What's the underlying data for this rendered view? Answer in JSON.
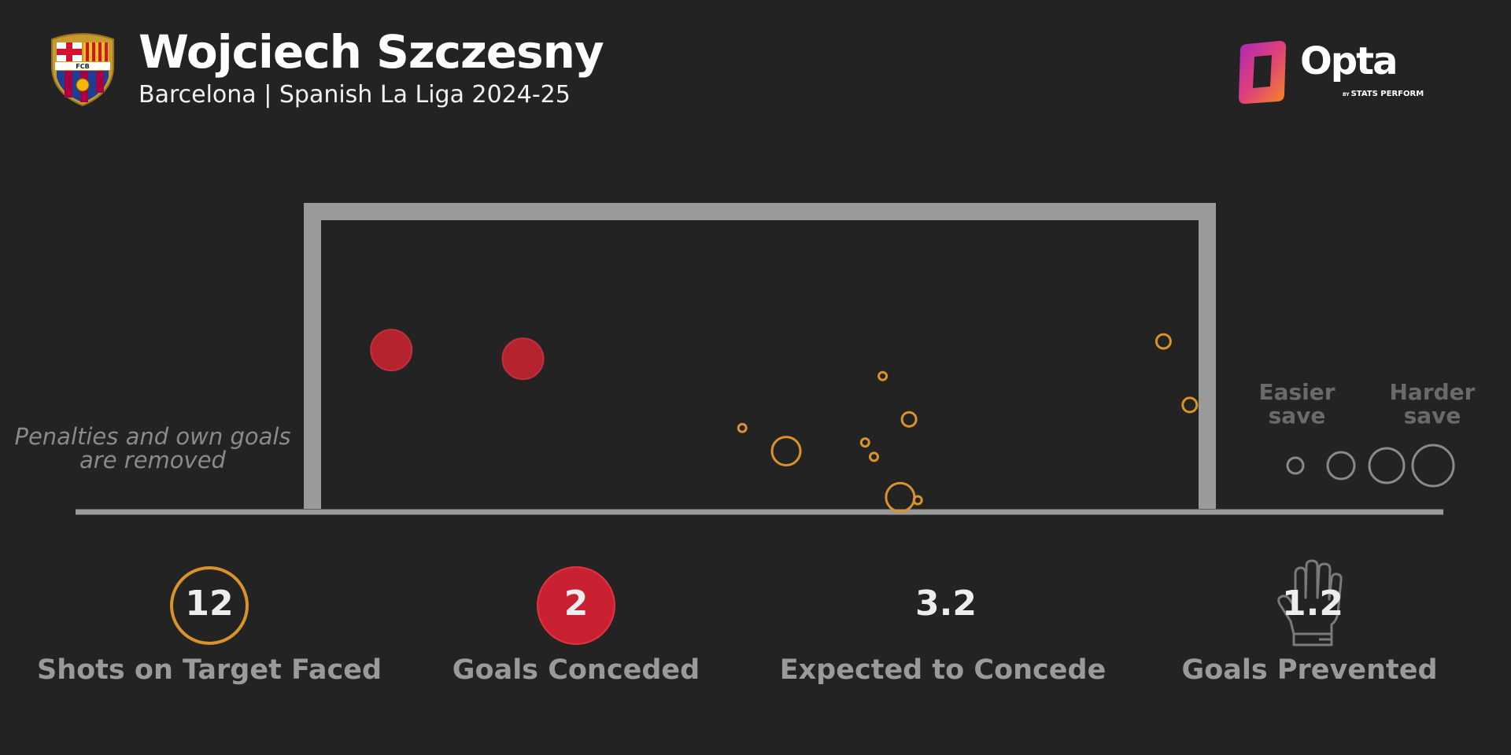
{
  "header": {
    "player_name": "Wojciech Szczesny",
    "subtitle": "Barcelona | Spanish La Liga 2024-25",
    "club_crest": "barcelona-fcb-crest",
    "crest_letters": "FCB"
  },
  "brand": {
    "logo_text": "Opta",
    "sub_prefix": "BY",
    "sub_text": "STATS PERFORM",
    "logo_colors": [
      "#b030a0",
      "#f08020"
    ]
  },
  "colors": {
    "background": "#232323",
    "goal_frame": "#9a9a9a",
    "saved_shot": "#d9932a",
    "goal_conceded": "#b5232f",
    "legend_outline": "#8a8a8a"
  },
  "note": [
    "Penalties and own goals",
    "are removed"
  ],
  "legend": {
    "easier_label": "Easier save",
    "harder_label": "Harder save",
    "size_steps": 4
  },
  "stats": [
    {
      "value": "12",
      "label": "Shots on Target Faced",
      "icon": "saved-shot-circle-icon"
    },
    {
      "value": "2",
      "label": "Goals Conceded",
      "icon": "goal-circle-icon"
    },
    {
      "value": "3.2",
      "label": "Expected to Concede",
      "icon": ""
    },
    {
      "value": "1.2",
      "label": "Goals Prevented",
      "icon": "goalkeeper-glove-icon"
    }
  ],
  "chart_data": {
    "type": "scatter",
    "description_axes": "shot placement across goal mouth; x = fraction of goal width from left post, y = fraction of goal height from ground",
    "xlim": [
      0,
      1
    ],
    "ylim": [
      0,
      1
    ],
    "series": [
      {
        "name": "",
        "outcome": "goal",
        "points": [
          {
            "x": 0.08,
            "y": 0.55,
            "size": 3
          },
          {
            "x": 0.23,
            "y": 0.52,
            "size": 3
          }
        ]
      },
      {
        "name": "",
        "outcome": "saved",
        "points": [
          {
            "x": 0.96,
            "y": 0.58,
            "size": 1
          },
          {
            "x": 0.64,
            "y": 0.46,
            "size": 0
          },
          {
            "x": 0.99,
            "y": 0.36,
            "size": 1
          },
          {
            "x": 0.67,
            "y": 0.31,
            "size": 1
          },
          {
            "x": 0.48,
            "y": 0.28,
            "size": 0
          },
          {
            "x": 0.53,
            "y": 0.2,
            "size": 2
          },
          {
            "x": 0.62,
            "y": 0.23,
            "size": 0
          },
          {
            "x": 0.63,
            "y": 0.18,
            "size": 0
          },
          {
            "x": 0.66,
            "y": 0.04,
            "size": 2
          },
          {
            "x": 0.68,
            "y": 0.03,
            "size": 0
          }
        ]
      }
    ]
  }
}
